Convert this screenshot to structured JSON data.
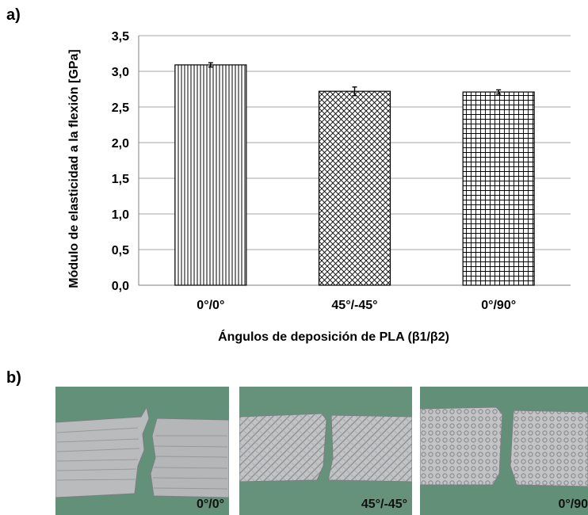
{
  "panels": {
    "a_label": "a)",
    "b_label": "b)"
  },
  "chart_data": {
    "type": "bar",
    "title": "",
    "xlabel": "Ángulos de deposición de PLA (β1/β2)",
    "ylabel": "Módulo de elasticidad a la flexión [GPa]",
    "categories": [
      "0°/0°",
      "45°/-45°",
      "0°/90°"
    ],
    "values": [
      3.09,
      2.72,
      2.71
    ],
    "errors": [
      0.03,
      0.06,
      0.03
    ],
    "patterns": [
      "vertical-lines",
      "diagonal-crosshatch",
      "grid"
    ],
    "ylim": [
      0,
      3.5
    ],
    "yticks": [
      "0,0",
      "0,5",
      "1,0",
      "1,5",
      "2,0",
      "2,5",
      "3,0",
      "3,5"
    ],
    "grid": true,
    "bar_fill": "#ffffff",
    "bar_stroke": "#000000",
    "grid_color": "#a6a6a6"
  },
  "photos": [
    {
      "label": "0°/0°",
      "pattern": "layered"
    },
    {
      "label": "45°/-45°",
      "pattern": "diagonal"
    },
    {
      "label": "0°/90",
      "pattern": "grid"
    }
  ],
  "colors": {
    "photo_background": "#5e8a74",
    "specimen": "#b9bbbd"
  }
}
